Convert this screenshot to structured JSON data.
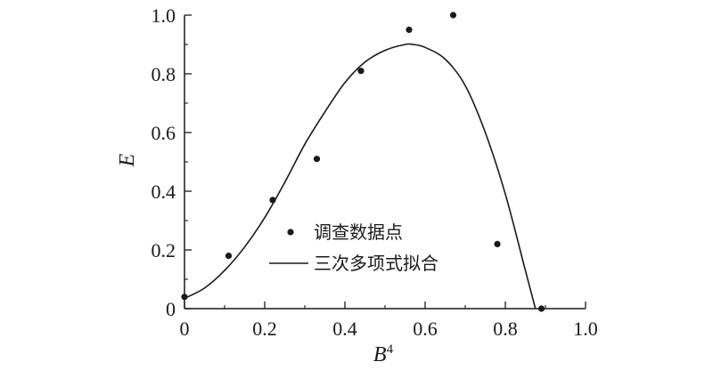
{
  "chart_data": {
    "type": "scatter",
    "xlabel": "B",
    "xlabel_sup": "4",
    "ylabel": "E",
    "xlim": [
      0,
      1.0
    ],
    "ylim": [
      0,
      1.0
    ],
    "x_ticks": [
      0,
      0.2,
      0.4,
      0.6,
      0.8,
      1.0
    ],
    "x_tick_labels": [
      "0",
      "0.2",
      "0.4",
      "0.6",
      "0.8",
      "1.0"
    ],
    "y_ticks": [
      0,
      0.2,
      0.4,
      0.6,
      0.8,
      1.0
    ],
    "y_tick_labels": [
      "0",
      "0.2",
      "0.4",
      "0.6",
      "0.8",
      "1.0"
    ],
    "grid": false,
    "legend_position": "center",
    "series": [
      {
        "name": "调查数据点",
        "kind": "scatter",
        "color": "#1a1a1a",
        "x": [
          0.0,
          0.11,
          0.22,
          0.33,
          0.44,
          0.56,
          0.67,
          0.78,
          0.89
        ],
        "y": [
          0.04,
          0.18,
          0.37,
          0.51,
          0.81,
          0.95,
          1.0,
          0.22,
          0.0
        ]
      },
      {
        "name": "三次多项式拟合",
        "kind": "line",
        "color": "#1a1a1a",
        "x": [
          0.0,
          0.05,
          0.1,
          0.15,
          0.2,
          0.25,
          0.3,
          0.35,
          0.4,
          0.45,
          0.5,
          0.55,
          0.57,
          0.6,
          0.65,
          0.7,
          0.75,
          0.8,
          0.85,
          0.875
        ],
        "y": [
          0.035,
          0.07,
          0.13,
          0.21,
          0.31,
          0.43,
          0.56,
          0.67,
          0.77,
          0.84,
          0.88,
          0.9,
          0.9,
          0.89,
          0.85,
          0.76,
          0.6,
          0.39,
          0.13,
          0.0
        ]
      }
    ]
  }
}
